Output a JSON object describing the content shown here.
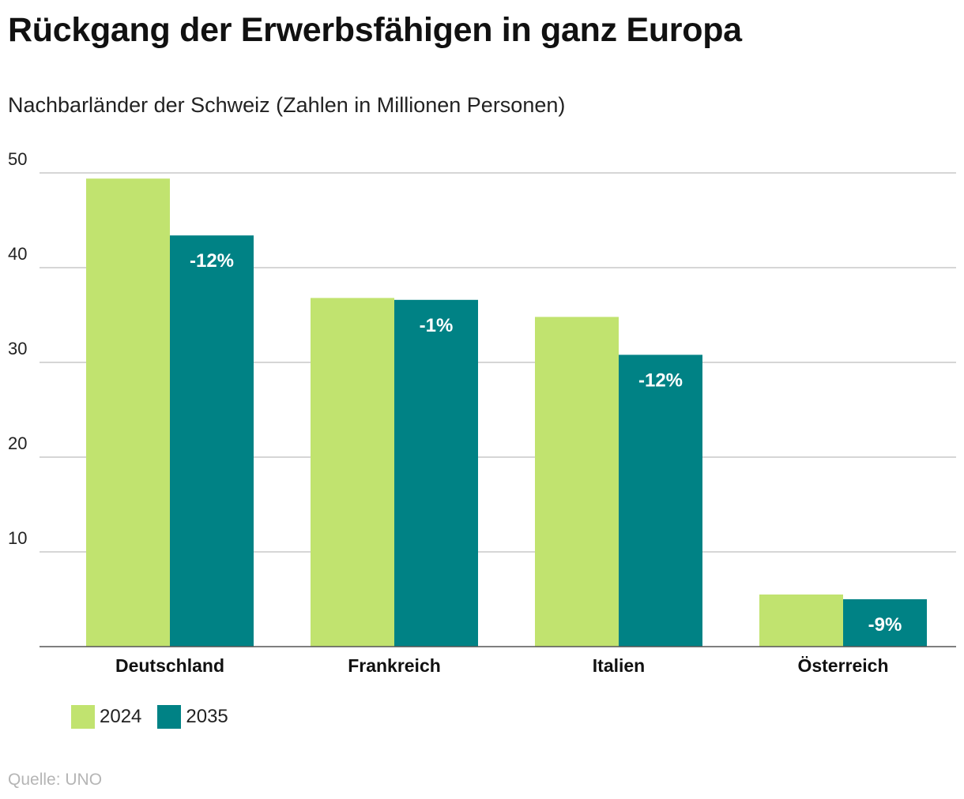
{
  "title": "Rückgang der Erwerbsfähigen in ganz Europa",
  "subtitle": "Nachbarländer der Schweiz (Zahlen in Millionen Personen)",
  "source": "Quelle: UNO",
  "colors": {
    "series_2024": "#c1e36f",
    "series_2035": "#008285",
    "grid": "#c8c8c8",
    "axis": "#555555",
    "text": "#111111",
    "label_on_bar": "#ffffff"
  },
  "chart_data": {
    "type": "bar",
    "title": "Rückgang der Erwerbsfähigen in ganz Europa",
    "subtitle": "Nachbarländer der Schweiz (Zahlen in Millionen Personen)",
    "xlabel": "",
    "ylabel": "",
    "categories": [
      "Deutschland",
      "Frankreich",
      "Italien",
      "Österreich"
    ],
    "series": [
      {
        "name": "2024",
        "values": [
          49.4,
          36.8,
          34.8,
          5.5
        ]
      },
      {
        "name": "2035",
        "values": [
          43.4,
          36.6,
          30.8,
          5.0
        ]
      }
    ],
    "change_labels": [
      "-12%",
      "-1%",
      "-12%",
      "-9%"
    ],
    "ylim": [
      0,
      50
    ],
    "yticks": [
      10,
      20,
      30,
      40,
      50
    ],
    "grid": true,
    "legend_position": "bottom-left"
  }
}
